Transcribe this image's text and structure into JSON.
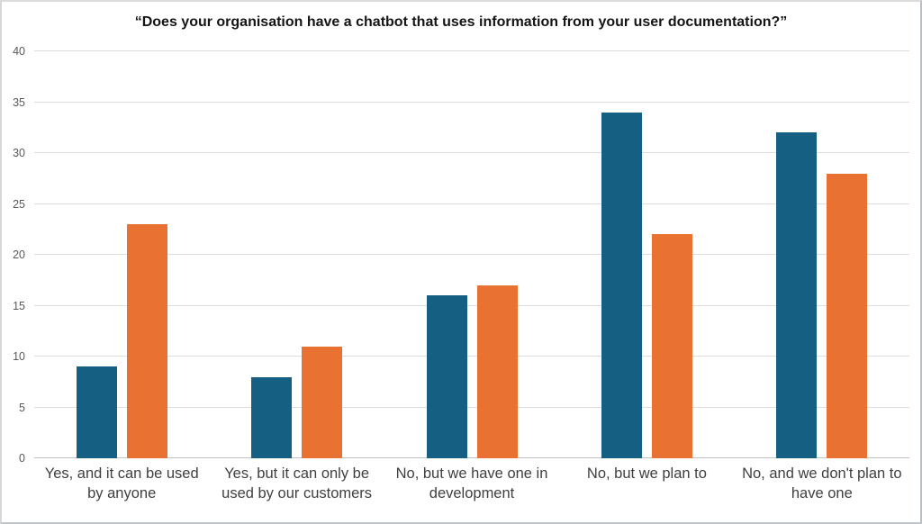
{
  "chart_data": {
    "type": "bar",
    "title": "“Does your organisation have a chatbot that uses information from your user documentation?”",
    "categories": [
      "Yes, and it can be used by anyone",
      "Yes, but it can only be used by our customers",
      "No, but we have one in development",
      "No, but we plan to",
      "No, and we don't plan to have one"
    ],
    "series": [
      {
        "name": "blue",
        "color": "#156082",
        "values": [
          9,
          8,
          16,
          34,
          32
        ]
      },
      {
        "name": "orange",
        "color": "#E97132",
        "values": [
          23,
          11,
          17,
          22,
          28
        ]
      }
    ],
    "xlabel": "",
    "ylabel": "",
    "ylim": [
      0,
      40
    ],
    "yticks": [
      0,
      5,
      10,
      15,
      20,
      25,
      30,
      35,
      40
    ],
    "grid": true,
    "legend": "none",
    "gridline_color": "#dcdcdc",
    "axis_line_color": "#c2c2c2",
    "tick_label_color": "#595959",
    "category_label_color": "#3f3f3f",
    "background_color": "#ffffff"
  }
}
